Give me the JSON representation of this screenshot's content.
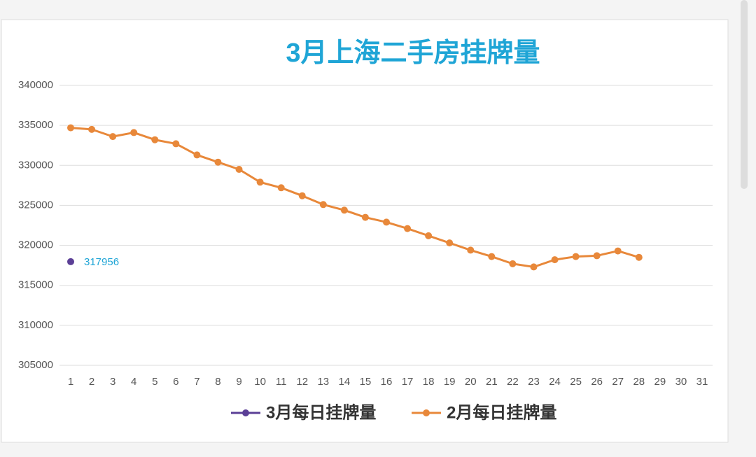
{
  "chart_data": {
    "type": "line",
    "title": "3月上海二手房挂牌量",
    "categories": [
      1,
      2,
      3,
      4,
      5,
      6,
      7,
      8,
      9,
      10,
      11,
      12,
      13,
      14,
      15,
      16,
      17,
      18,
      19,
      20,
      21,
      22,
      23,
      24,
      25,
      26,
      27,
      28,
      29,
      30,
      31
    ],
    "series": [
      {
        "name": "3月每日挂牌量",
        "color": "#5b3f96",
        "values": [
          317956,
          null,
          null,
          null,
          null,
          null,
          null,
          null,
          null,
          null,
          null,
          null,
          null,
          null,
          null,
          null,
          null,
          null,
          null,
          null,
          null,
          null,
          null,
          null,
          null,
          null,
          null,
          null,
          null,
          null,
          null
        ]
      },
      {
        "name": "2月每日挂牌量",
        "color": "#e8883a",
        "values": [
          334700,
          334500,
          333600,
          334100,
          333200,
          332700,
          331300,
          330400,
          329500,
          327900,
          327200,
          326200,
          325100,
          324400,
          323500,
          322900,
          322100,
          321200,
          320300,
          319400,
          318600,
          317700,
          317300,
          318200,
          318600,
          318700,
          319300,
          318500,
          null,
          null,
          null
        ]
      }
    ],
    "ylim": [
      305000,
      340000
    ],
    "yticks": [
      305000,
      310000,
      315000,
      320000,
      325000,
      330000,
      335000,
      340000
    ],
    "grid": true
  }
}
